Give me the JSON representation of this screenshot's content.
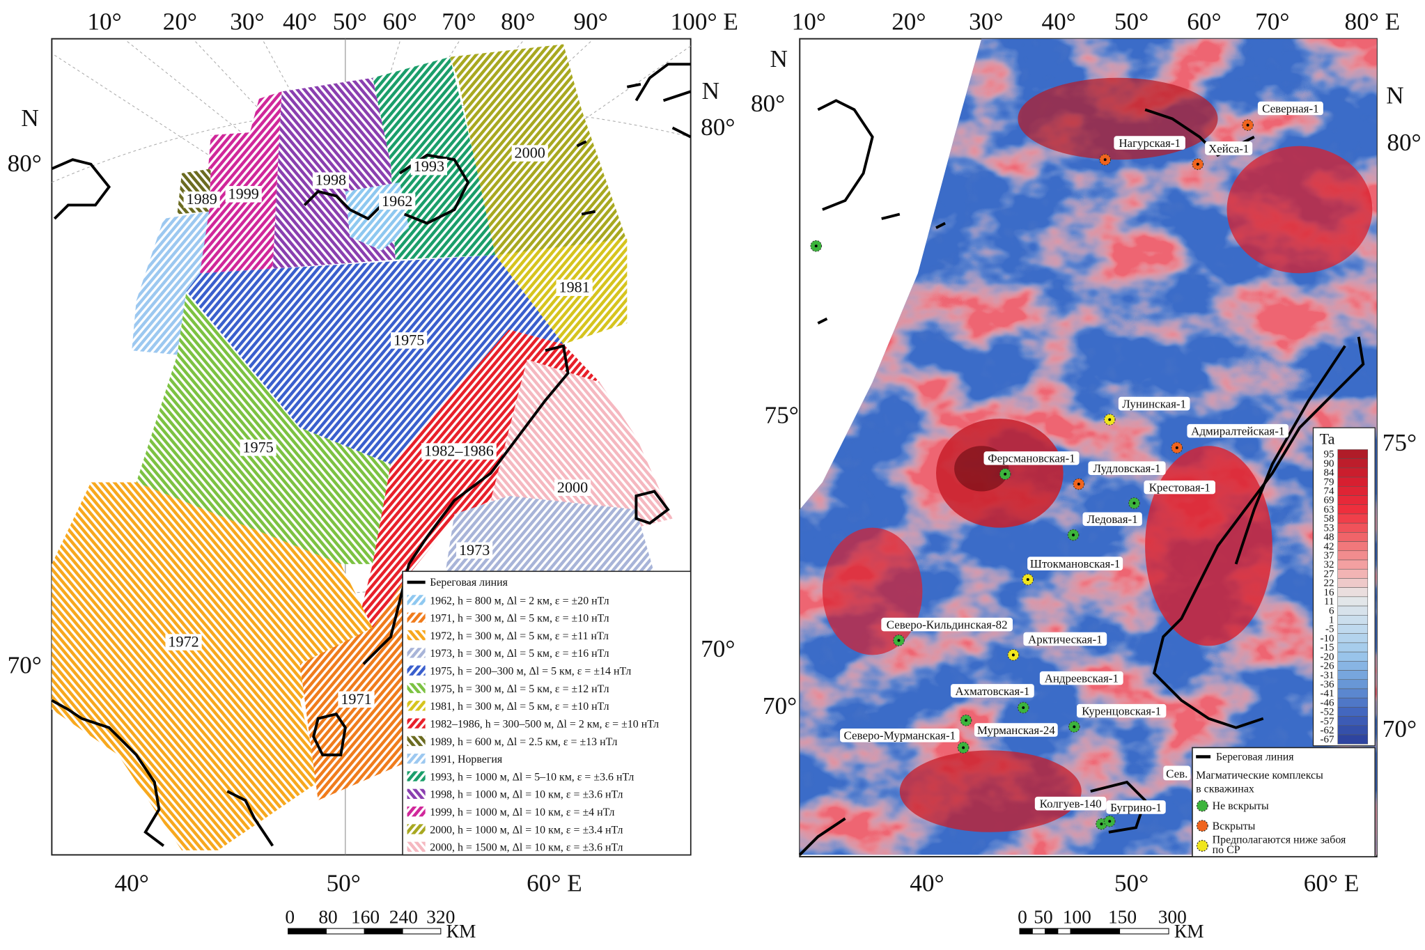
{
  "left_map": {
    "top_ticks": [
      "10°",
      "20°",
      "30°",
      "40°",
      "50°",
      "60°",
      "70°",
      "80°",
      "90°",
      "100° E"
    ],
    "left_ticks": [
      "N",
      "80°",
      "70°"
    ],
    "right_ticks": [
      "N",
      "80°",
      "70°"
    ],
    "bottom_ticks": [
      "40°",
      "50°",
      "60° E"
    ],
    "area_labels": [
      "2000",
      "1993",
      "1998",
      "1962",
      "1989",
      "1999",
      "1981",
      "1975",
      "1975",
      "1982–1986",
      "2000",
      "1973",
      "1972",
      "1971"
    ],
    "legend": {
      "coastline": "Береговая линия",
      "items": [
        {
          "label": "1962, h = 800 м, Δl = 2 км, ε = ±20 нТл",
          "color": "#8ec8f0"
        },
        {
          "label": "1971, h = 300 м, Δl = 5 км, ε = ±10 нТл",
          "color": "#f07c1c"
        },
        {
          "label": "1972, h = 300 м, Δl = 5 км, ε = ±11 нТл",
          "color": "#f7a81e"
        },
        {
          "label": "1973, h = 300 м, Δl = 5 км, ε = ±16 нТл",
          "color": "#a8b4d8"
        },
        {
          "label": "1975, h = 200–300 м, Δl = 5 км, ε = ±14 нТл",
          "color": "#3a5fcd"
        },
        {
          "label": "1975, h = 300 м, Δl = 5 км, ε = ±12 нТл",
          "color": "#7cc242"
        },
        {
          "label": "1981, h = 300 м, Δl = 5 км, ε = ±10 нТл",
          "color": "#d6c41e"
        },
        {
          "label": "1982–1986, h = 300–500 м, Δl = 2 км, ε = ±10 нТл",
          "color": "#e8202a"
        },
        {
          "label": "1989, h = 600 м, Δl = 2.5 км, ε = ±13 нТл",
          "color": "#6b6b20"
        },
        {
          "label": "1991, Норвегия",
          "color": "#9cc8f0"
        },
        {
          "label": "1993, h = 1000 м, Δl = 5–10 км, ε = ±3.6 нТл",
          "color": "#1a9e6a"
        },
        {
          "label": "1998, h = 1000 м, Δl = 10 км, ε = ±3.6 нТл",
          "color": "#8a3fb0"
        },
        {
          "label": "1999, h = 1000 м, Δl = 10 км, ε = ±4 нТл",
          "color": "#d0279a"
        },
        {
          "label": "2000, h = 1000 м, Δl = 10 км, ε = ±3.4 нТл",
          "color": "#a8a820"
        },
        {
          "label": "2000, h = 1500 м, Δl = 10 км, ε = ±3.6 нТл",
          "color": "#f5b8c0"
        }
      ]
    },
    "scale": {
      "ticks": [
        "0",
        "80",
        "160",
        "240",
        "320"
      ],
      "unit": "КМ"
    }
  },
  "right_map": {
    "top_ticks": [
      "10°",
      "20°",
      "30°",
      "40°",
      "50°",
      "60°",
      "70°",
      "80° E"
    ],
    "left_ticks": [
      "N",
      "80°",
      "75°",
      "70°"
    ],
    "right_ticks": [
      "N",
      "80°",
      "75°",
      "70°"
    ],
    "bottom_ticks": [
      "40°",
      "50°",
      "60° E"
    ],
    "wells": [
      {
        "name": "Северная-1",
        "status": "opened"
      },
      {
        "name": "Нагурская-1",
        "status": "opened"
      },
      {
        "name": "Хейса-1",
        "status": "opened"
      },
      {
        "name": "",
        "status": "not_opened"
      },
      {
        "name": "Лунинская-1",
        "status": "below_bottom"
      },
      {
        "name": "Адмиралтейская-1",
        "status": "opened"
      },
      {
        "name": "Ферсмановская-1",
        "status": "not_opened"
      },
      {
        "name": "Лудловская-1",
        "status": "opened"
      },
      {
        "name": "Крестовая-1",
        "status": "not_opened"
      },
      {
        "name": "Ледовая-1",
        "status": "not_opened"
      },
      {
        "name": "Штокмановская-1",
        "status": "below_bottom"
      },
      {
        "name": "Северо-Кильдинская-82",
        "status": "not_opened"
      },
      {
        "name": "Арктическая-1",
        "status": "below_bottom"
      },
      {
        "name": "Андреевская-1",
        "status": "not_opened"
      },
      {
        "name": "Ахматовская-1",
        "status": "not_opened"
      },
      {
        "name": "Куренцовская-1",
        "status": "not_opened"
      },
      {
        "name": "Мурманская-24",
        "status": "not_opened"
      },
      {
        "name": "Северо-Мурманская-1",
        "status": "not_opened"
      },
      {
        "name": "Колгуев-140",
        "status": "not_opened"
      },
      {
        "name": "Бугрино-1",
        "status": "not_opened"
      }
    ],
    "extra_label": "Сев.",
    "colorbar": {
      "title": "Ta",
      "values": [
        95,
        90,
        84,
        79,
        74,
        69,
        63,
        58,
        53,
        48,
        42,
        37,
        32,
        27,
        22,
        16,
        11,
        6,
        1,
        -5,
        -10,
        -15,
        -20,
        -26,
        -31,
        -36,
        -41,
        -46,
        -52,
        -57,
        -62,
        -67
      ],
      "colors_high_to_low": [
        "#b01c28",
        "#d81f30",
        "#f0303e",
        "#f06a6e",
        "#f4a8a8",
        "#e8e8e8",
        "#c4dcee",
        "#9ec8ec",
        "#6a9ad8",
        "#4468c0",
        "#2e44a0"
      ]
    },
    "legend": {
      "coastline": "Береговая линия",
      "title_line1": "Магматические комплексы",
      "title_line2": "в скважинах",
      "not_opened": "Не вскрыты",
      "opened": "Вскрыты",
      "below_line1": "Предполагаются ниже забоя",
      "below_line2": "по СР"
    },
    "status_colors": {
      "not_opened": "#3cb43c",
      "opened": "#f0641e",
      "below_bottom": "#f0e61e"
    },
    "scale": {
      "ticks": [
        "0",
        "50",
        "100",
        "150",
        "300"
      ],
      "unit": "КМ"
    }
  }
}
